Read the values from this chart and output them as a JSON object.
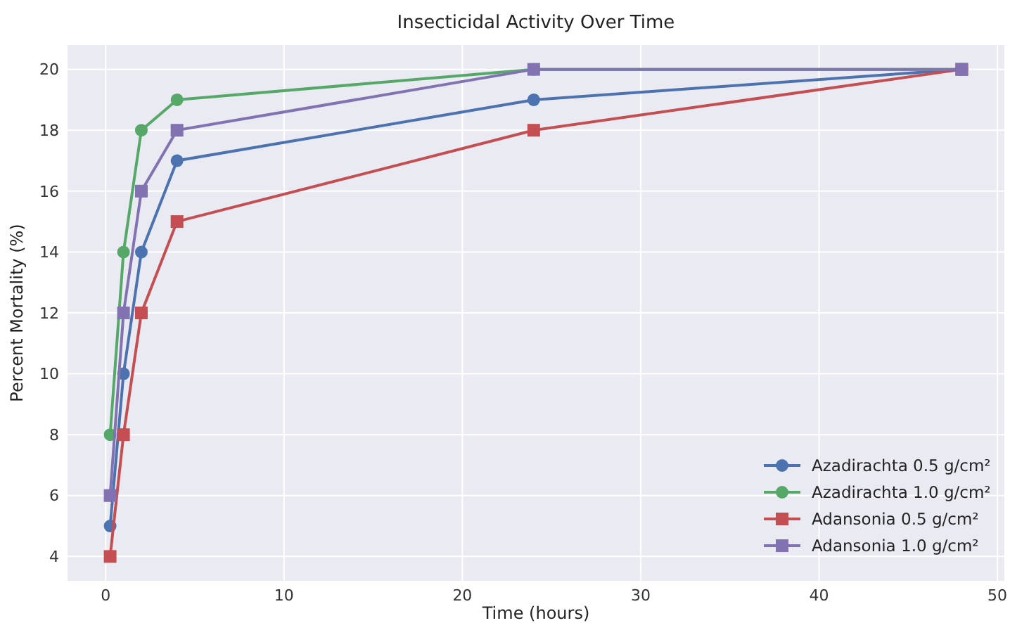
{
  "chart_data": {
    "type": "line",
    "title": "Insecticidal Activity Over Time",
    "xlabel": "Time (hours)",
    "ylabel": "Percent Mortality (%)",
    "x": [
      0.25,
      1,
      2,
      4,
      24,
      48
    ],
    "series": [
      {
        "name": "Azadirachta 0.5 g/cm²",
        "color": "#4c72b0",
        "marker": "circle",
        "values": [
          5,
          10,
          14,
          17,
          19,
          20
        ]
      },
      {
        "name": "Azadirachta 1.0 g/cm²",
        "color": "#55a868",
        "marker": "circle",
        "values": [
          8,
          14,
          18,
          19,
          20,
          20
        ]
      },
      {
        "name": "Adansonia 0.5 g/cm²",
        "color": "#c44e52",
        "marker": "square",
        "values": [
          4,
          8,
          12,
          15,
          18,
          20
        ]
      },
      {
        "name": "Adansonia 1.0 g/cm²",
        "color": "#8172b2",
        "marker": "square",
        "values": [
          6,
          12,
          16,
          18,
          20,
          20
        ]
      }
    ],
    "xlim": [
      -2.14,
      50.39
    ],
    "xticks": [
      0,
      10,
      20,
      30,
      40,
      50
    ],
    "ylim": [
      3.2,
      20.8
    ],
    "yticks": [
      4,
      6,
      8,
      10,
      12,
      14,
      16,
      18,
      20
    ],
    "grid": true,
    "legend": "bottom right",
    "line_style": "solid"
  }
}
